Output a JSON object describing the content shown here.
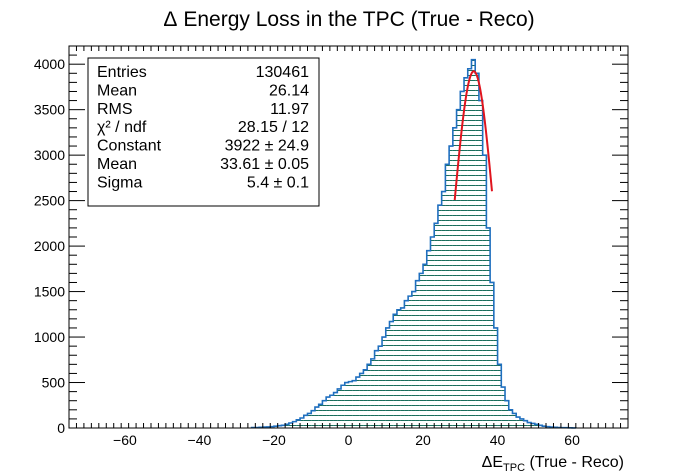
{
  "chart_data": {
    "type": "bar",
    "title_prefix": "Δ",
    "title_main": "Energy Loss in the TPC (True - Reco)",
    "xlabel_delta": "Δ",
    "xlabel_E": "E",
    "xlabel_sub": "TPC",
    "xlabel_rest": " (True - Reco)",
    "ylabel": "",
    "xlim": [
      -75,
      75
    ],
    "ylim": [
      0,
      4200
    ],
    "x_ticks": [
      -60,
      -40,
      -20,
      0,
      20,
      40,
      60
    ],
    "x_tick_labels": [
      "−60",
      "−40",
      "−20",
      "0",
      "20",
      "40",
      "60"
    ],
    "y_ticks": [
      0,
      500,
      1000,
      1500,
      2000,
      2500,
      3000,
      3500,
      4000
    ],
    "y_tick_labels": [
      "0",
      "500",
      "1000",
      "1500",
      "2000",
      "2500",
      "3000",
      "3500",
      "4000"
    ],
    "bin_width": 1,
    "hist_color": "#1f6fbf",
    "fill_hatch_color": "#1a6e5c",
    "fit_color": "#e0141e",
    "histogram": {
      "bin_low_edges": [
        -26,
        -25,
        -24,
        -23,
        -22,
        -21,
        -20,
        -19,
        -18,
        -17,
        -16,
        -15,
        -14,
        -13,
        -12,
        -11,
        -10,
        -9,
        -8,
        -7,
        -6,
        -5,
        -4,
        -3,
        -2,
        -1,
        0,
        1,
        2,
        3,
        4,
        5,
        6,
        7,
        8,
        9,
        10,
        11,
        12,
        13,
        14,
        15,
        16,
        17,
        18,
        19,
        20,
        21,
        22,
        23,
        24,
        25,
        26,
        27,
        28,
        29,
        30,
        31,
        32,
        33,
        34,
        35,
        36,
        37,
        38,
        39,
        40,
        41,
        42,
        43,
        44,
        45,
        46,
        47,
        48,
        49,
        50,
        51,
        52,
        53,
        54,
        55,
        56,
        57,
        58,
        59,
        60
      ],
      "counts": [
        5,
        5,
        8,
        10,
        12,
        15,
        20,
        25,
        30,
        40,
        55,
        70,
        90,
        110,
        140,
        160,
        190,
        230,
        260,
        300,
        340,
        360,
        390,
        430,
        470,
        500,
        510,
        520,
        560,
        600,
        640,
        700,
        760,
        850,
        900,
        1000,
        1100,
        1170,
        1250,
        1300,
        1320,
        1400,
        1450,
        1500,
        1620,
        1700,
        1800,
        1950,
        2100,
        2250,
        2450,
        2600,
        2900,
        3100,
        3300,
        3500,
        3700,
        3850,
        3950,
        4050,
        3900,
        3600,
        3000,
        2200,
        1600,
        1100,
        700,
        450,
        300,
        200,
        160,
        120,
        100,
        80,
        60,
        50,
        40,
        30,
        20,
        15,
        10,
        8,
        5,
        4,
        3,
        2,
        1
      ]
    },
    "fit": {
      "function": "gaus",
      "constant": 3922,
      "mean": 33.61,
      "sigma": 5.4,
      "range": [
        28.5,
        38.5
      ]
    },
    "stats_box": [
      {
        "label": "Entries",
        "value": "130461"
      },
      {
        "label": "Mean",
        "value": "26.14"
      },
      {
        "label": "RMS",
        "value": "11.97"
      },
      {
        "label": "χ² / ndf",
        "value": "28.15 / 12"
      },
      {
        "label": "Constant",
        "value": "3922 ± 24.9"
      },
      {
        "label": "Mean",
        "value": "33.61 ± 0.05"
      },
      {
        "label": "Sigma",
        "value": "5.4 ± 0.1"
      }
    ]
  }
}
